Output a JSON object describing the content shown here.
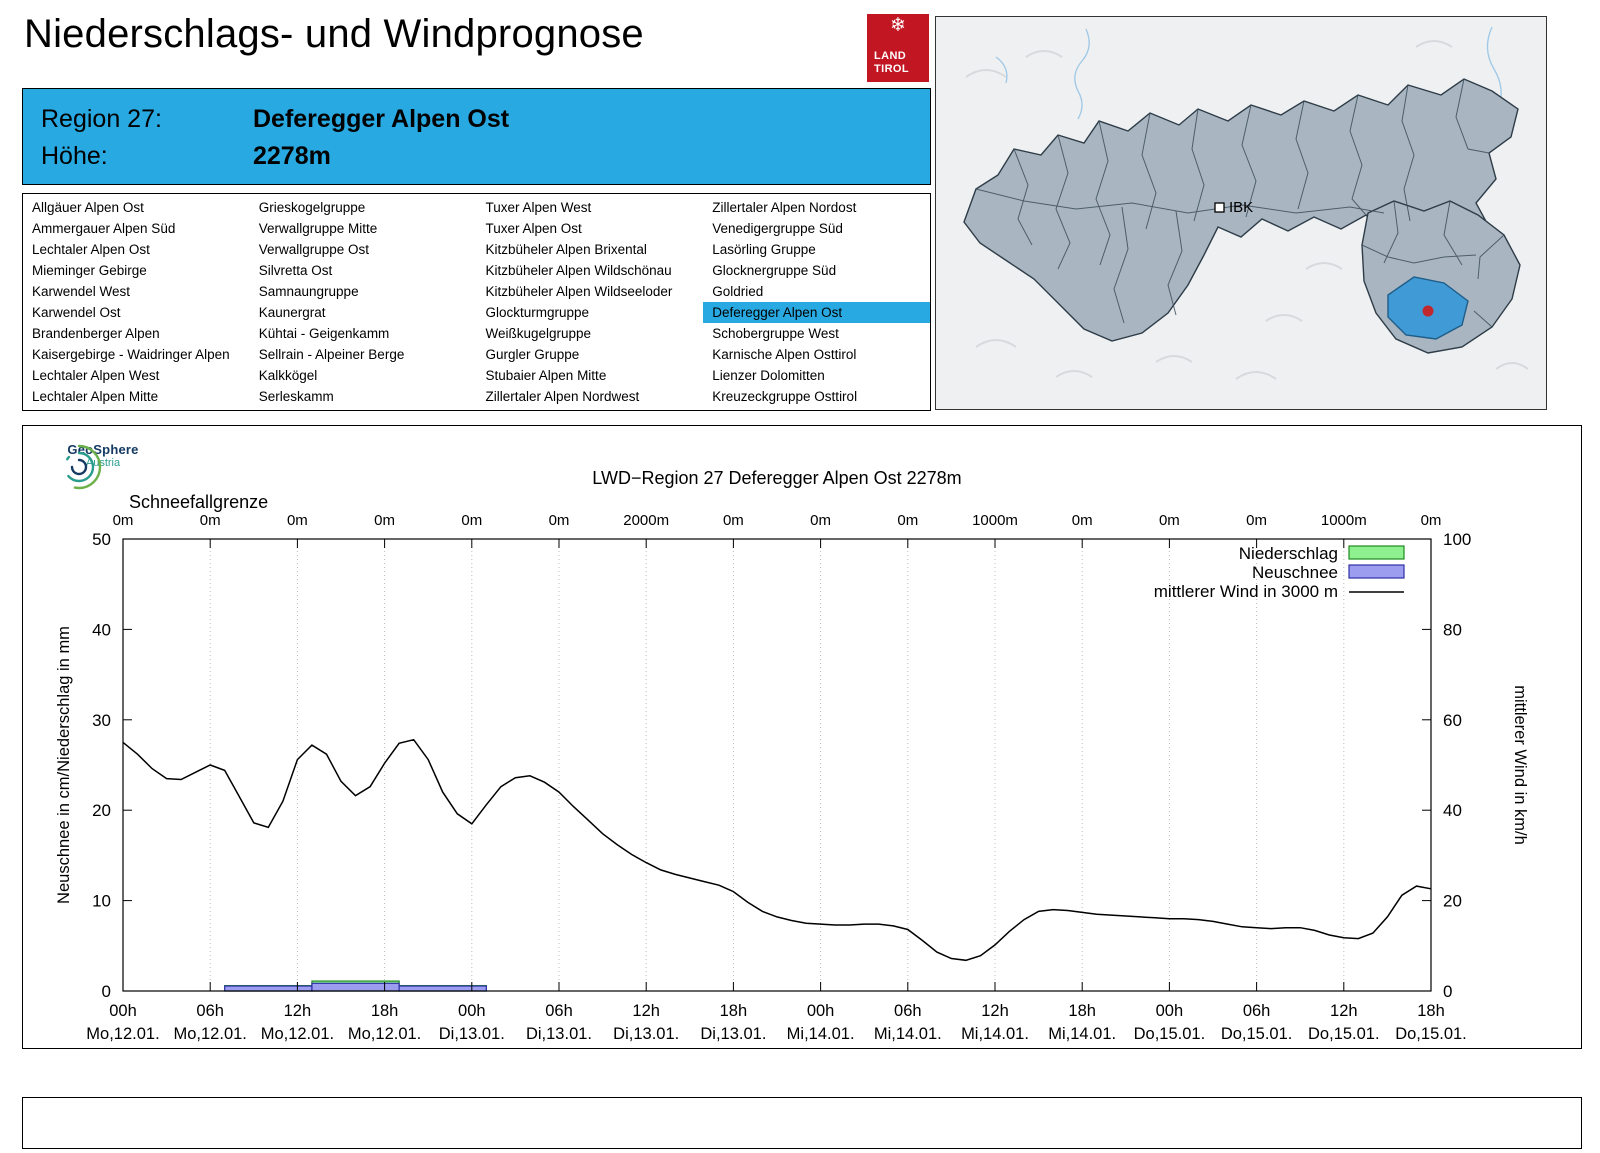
{
  "header": {
    "title": "Niederschlags- und Windprognose",
    "logo": {
      "line1": "LAND",
      "line2": "TIROL",
      "color": "#c21622",
      "icon": "snowflake-icon"
    }
  },
  "map": {
    "city_label": "IBK",
    "selected_region_color": "#3f9ad6",
    "marker_color": "#c2272d"
  },
  "region_info": {
    "region_label": "Region 27:",
    "region_value": "Deferegger Alpen Ost",
    "altitude_label": "Höhe:",
    "altitude_value": "2278m",
    "accent_color": "#29a9e1"
  },
  "region_list": {
    "selected": "Deferegger Alpen Ost",
    "columns": [
      [
        "Allgäuer Alpen Ost",
        "Ammergauer Alpen Süd",
        "Lechtaler Alpen Ost",
        "Mieminger Gebirge",
        "Karwendel West",
        "Karwendel Ost",
        "Brandenberger Alpen",
        "Kaisergebirge - Waidringer Alpen",
        "Lechtaler Alpen West",
        "Lechtaler Alpen Mitte"
      ],
      [
        "Grieskogelgruppe",
        "Verwallgruppe Mitte",
        "Verwallgruppe Ost",
        "Silvretta Ost",
        "Samnaungruppe",
        "Kaunergrat",
        "Kühtai - Geigenkamm",
        "Sellrain - Alpeiner Berge",
        "Kalkkögel",
        "Serleskamm"
      ],
      [
        "Tuxer Alpen West",
        "Tuxer Alpen Ost",
        "Kitzbüheler Alpen Brixental",
        "Kitzbüheler Alpen Wildschönau",
        "Kitzbüheler Alpen Wildseeloder",
        "Glockturmgruppe",
        "Weißkugelgruppe",
        "Gurgler Gruppe",
        "Stubaier Alpen Mitte",
        "Zillertaler Alpen Nordwest"
      ],
      [
        "Zillertaler Alpen Nordost",
        "Venedigergruppe Süd",
        "Lasörling Gruppe",
        "Glocknergruppe Süd",
        "Goldried",
        "Deferegger Alpen Ost",
        "Schobergruppe West",
        "Karnische Alpen Osttirol",
        "Lienzer Dolomitten",
        "Kreuzeckgruppe Osttirol"
      ]
    ]
  },
  "branding": {
    "geosphere_line1": "GeoSphere",
    "geosphere_line2": "Austria"
  },
  "chart_data": {
    "type": "line",
    "title": "LWD−Region 27 Deferegger Alpen Ost 2278m",
    "ylabel_left": "Neuschnee in cm/Niederschlag in mm",
    "ylabel_right": "mittlerer Wind in km/h",
    "left_ylim": [
      0,
      50
    ],
    "right_ylim": [
      0,
      100
    ],
    "x_range_hours": [
      0,
      90
    ],
    "grid": "vertical-dashed",
    "legend_position": "top-right",
    "legend": {
      "niederschlag": "Niederschlag",
      "neuschnee": "Neuschnee",
      "wind": "mittlerer Wind in 3000 m"
    },
    "colors": {
      "niederschlag_fill": "#8ef08e",
      "niederschlag_stroke": "#1f8a1f",
      "neuschnee_fill": "#9d9df0",
      "neuschnee_stroke": "#2f2fa8",
      "wind_line": "#000000",
      "grid_line": "#bbbbbb"
    },
    "x_ticks": [
      {
        "time": "00h",
        "date": "Mo,12.01."
      },
      {
        "time": "06h",
        "date": "Mo,12.01."
      },
      {
        "time": "12h",
        "date": "Mo,12.01."
      },
      {
        "time": "18h",
        "date": "Mo,12.01."
      },
      {
        "time": "00h",
        "date": "Di,13.01."
      },
      {
        "time": "06h",
        "date": "Di,13.01."
      },
      {
        "time": "12h",
        "date": "Di,13.01."
      },
      {
        "time": "18h",
        "date": "Di,13.01."
      },
      {
        "time": "00h",
        "date": "Mi,14.01."
      },
      {
        "time": "06h",
        "date": "Mi,14.01."
      },
      {
        "time": "12h",
        "date": "Mi,14.01."
      },
      {
        "time": "18h",
        "date": "Mi,14.01."
      },
      {
        "time": "00h",
        "date": "Do,15.01."
      },
      {
        "time": "06h",
        "date": "Do,15.01."
      },
      {
        "time": "12h",
        "date": "Do,15.01."
      },
      {
        "time": "18h",
        "date": "Do,15.01."
      }
    ],
    "schneefallgrenze": {
      "label": "Schneefallgrenze",
      "values": [
        "0m",
        "0m",
        "0m",
        "0m",
        "0m",
        "0m",
        "2000m",
        "0m",
        "0m",
        "0m",
        "1000m",
        "0m",
        "0m",
        "0m",
        "1000m",
        "0m"
      ]
    },
    "niederschlag_segments_mm": [
      {
        "from": 7,
        "to": 13,
        "value": 0.6
      },
      {
        "from": 13,
        "to": 19,
        "value": 1.1
      },
      {
        "from": 19,
        "to": 25,
        "value": 0.6
      }
    ],
    "neuschnee_segments_cm": [
      {
        "from": 7,
        "to": 13,
        "value": 0.55
      },
      {
        "from": 13,
        "to": 19,
        "value": 0.85
      },
      {
        "from": 19,
        "to": 25,
        "value": 0.55
      }
    ],
    "wind_points_left_units": [
      [
        0,
        27.5
      ],
      [
        1,
        26.2
      ],
      [
        2,
        24.6
      ],
      [
        3,
        23.5
      ],
      [
        4,
        23.4
      ],
      [
        5,
        24.2
      ],
      [
        6,
        25.0
      ],
      [
        7,
        24.4
      ],
      [
        8,
        21.5
      ],
      [
        9,
        18.6
      ],
      [
        10,
        18.1
      ],
      [
        11,
        21.0
      ],
      [
        12,
        25.6
      ],
      [
        13,
        27.2
      ],
      [
        14,
        26.2
      ],
      [
        15,
        23.2
      ],
      [
        16,
        21.6
      ],
      [
        17,
        22.6
      ],
      [
        18,
        25.2
      ],
      [
        19,
        27.4
      ],
      [
        20,
        27.8
      ],
      [
        21,
        25.6
      ],
      [
        22,
        22.0
      ],
      [
        23,
        19.6
      ],
      [
        24,
        18.5
      ],
      [
        25,
        20.6
      ],
      [
        26,
        22.6
      ],
      [
        27,
        23.6
      ],
      [
        28,
        23.8
      ],
      [
        29,
        23.1
      ],
      [
        30,
        22.0
      ],
      [
        31,
        20.4
      ],
      [
        32,
        18.9
      ],
      [
        33,
        17.4
      ],
      [
        34,
        16.2
      ],
      [
        35,
        15.1
      ],
      [
        36,
        14.2
      ],
      [
        37,
        13.4
      ],
      [
        38,
        12.9
      ],
      [
        39,
        12.5
      ],
      [
        40,
        12.1
      ],
      [
        41,
        11.7
      ],
      [
        42,
        11.0
      ],
      [
        43,
        9.8
      ],
      [
        44,
        8.8
      ],
      [
        45,
        8.2
      ],
      [
        46,
        7.8
      ],
      [
        47,
        7.5
      ],
      [
        48,
        7.4
      ],
      [
        49,
        7.3
      ],
      [
        50,
        7.3
      ],
      [
        51,
        7.4
      ],
      [
        52,
        7.4
      ],
      [
        53,
        7.2
      ],
      [
        54,
        6.8
      ],
      [
        55,
        5.6
      ],
      [
        56,
        4.3
      ],
      [
        57,
        3.6
      ],
      [
        58,
        3.4
      ],
      [
        59,
        3.9
      ],
      [
        60,
        5.1
      ],
      [
        61,
        6.6
      ],
      [
        62,
        7.9
      ],
      [
        63,
        8.8
      ],
      [
        64,
        9.0
      ],
      [
        65,
        8.9
      ],
      [
        66,
        8.7
      ],
      [
        67,
        8.5
      ],
      [
        68,
        8.4
      ],
      [
        69,
        8.3
      ],
      [
        70,
        8.2
      ],
      [
        71,
        8.1
      ],
      [
        72,
        8.0
      ],
      [
        73,
        8.0
      ],
      [
        74,
        7.9
      ],
      [
        75,
        7.7
      ],
      [
        76,
        7.4
      ],
      [
        77,
        7.1
      ],
      [
        78,
        7.0
      ],
      [
        79,
        6.9
      ],
      [
        80,
        7.0
      ],
      [
        81,
        7.0
      ],
      [
        82,
        6.7
      ],
      [
        83,
        6.2
      ],
      [
        84,
        5.9
      ],
      [
        85,
        5.8
      ],
      [
        86,
        6.4
      ],
      [
        87,
        8.2
      ],
      [
        88,
        10.6
      ],
      [
        89,
        11.6
      ],
      [
        90,
        11.3
      ]
    ]
  }
}
